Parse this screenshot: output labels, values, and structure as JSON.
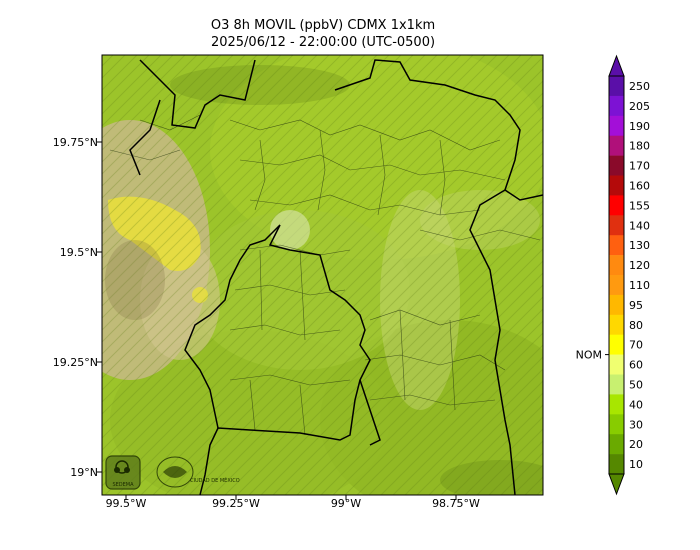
{
  "title": {
    "line1": "O3 8h MOVIL (ppbV) CDMX 1x1km",
    "line2": "2025/06/12 - 22:00:00 (UTC-0500)"
  },
  "axes": {
    "lat_ticks": [
      "19.75°N",
      "19.5°N",
      "19.25°N",
      "19°N"
    ],
    "lon_ticks": [
      "99.5°W",
      "99.25°W",
      "99°W",
      "98.75°W"
    ]
  },
  "colorbar": {
    "levels": [
      "250",
      "205",
      "190",
      "180",
      "170",
      "160",
      "155",
      "140",
      "130",
      "120",
      "110",
      "95",
      "80",
      "70",
      "60",
      "50",
      "40",
      "30",
      "20",
      "10"
    ],
    "colors": [
      "#5a0fa8",
      "#7d12d4",
      "#a30fd8",
      "#b0107a",
      "#8a0a2a",
      "#b40a0a",
      "#ff0000",
      "#e03010",
      "#ff6010",
      "#ff8a10",
      "#ff9a10",
      "#ffb800",
      "#ffd800",
      "#ffff00",
      "#f0ff70",
      "#c8f070",
      "#a8e600",
      "#88cc00",
      "#6aaa00",
      "#558800"
    ],
    "nom_label": "NOM",
    "nom_value": 65
  },
  "logos": {
    "left": "SEDEMA",
    "right": "CIUDAD DE MÉXICO"
  }
}
